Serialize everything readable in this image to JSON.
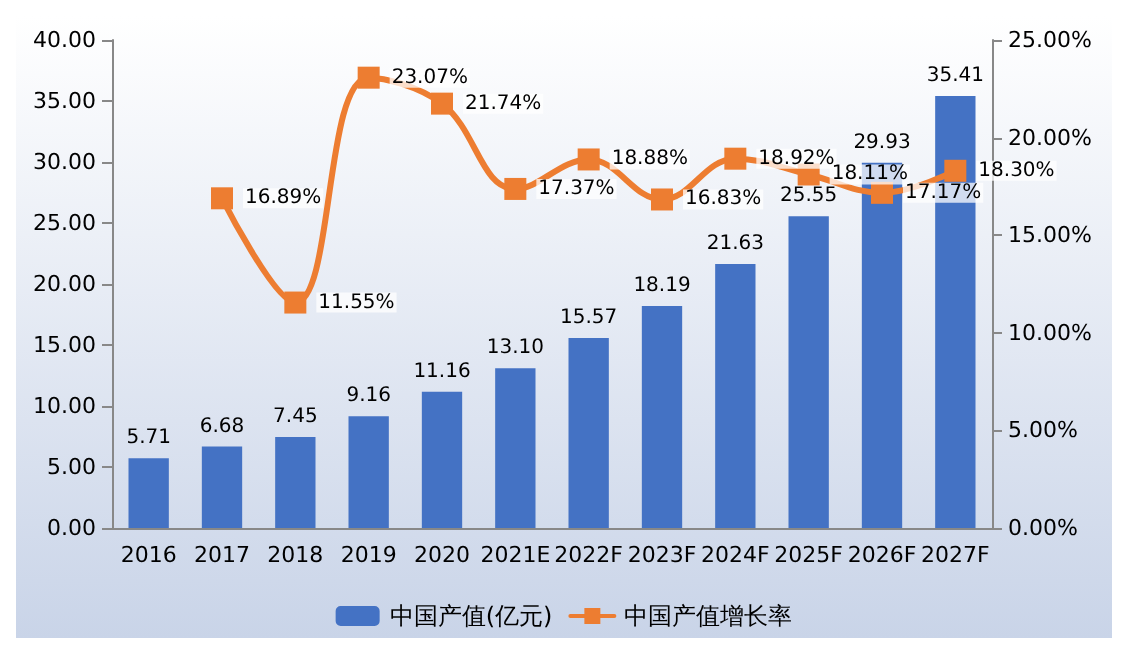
{
  "chart_data": {
    "type": "bar",
    "categories": [
      "2016",
      "2017",
      "2018",
      "2019",
      "2020",
      "2021E",
      "2022F",
      "2023F",
      "2024F",
      "2025F",
      "2026F",
      "2027F"
    ],
    "series": [
      {
        "name": "中国产值(亿元)",
        "color": "#4472c4",
        "values": [
          5.71,
          6.68,
          7.45,
          9.16,
          11.16,
          13.1,
          15.57,
          18.19,
          21.63,
          25.55,
          29.93,
          35.41
        ],
        "value_labels": [
          "5.71",
          "6.68",
          "7.45",
          "9.16",
          "11.16",
          "13.10",
          "15.57",
          "18.19",
          "21.63",
          "25.55",
          "29.93",
          "35.41"
        ]
      },
      {
        "name": "中国产值增长率",
        "type": "line",
        "axis": "y2",
        "color": "#ed7d31",
        "marker": "square",
        "line_style": "solid",
        "values": [
          null,
          16.89,
          11.55,
          23.07,
          21.74,
          17.37,
          18.88,
          16.83,
          18.92,
          18.11,
          17.17,
          18.3
        ],
        "value_labels": [
          null,
          "16.89%",
          "11.55%",
          "23.07%",
          "21.74%",
          "17.37%",
          "18.88%",
          "16.83%",
          "18.92%",
          "18.11%",
          "17.17%",
          "18.30%"
        ]
      }
    ],
    "ylim": [
      0,
      40
    ],
    "yticks": [
      {
        "value": 0,
        "label": "0.00"
      },
      {
        "value": 5,
        "label": "5.00"
      },
      {
        "value": 10,
        "label": "10.00"
      },
      {
        "value": 15,
        "label": "15.00"
      },
      {
        "value": 20,
        "label": "20.00"
      },
      {
        "value": 25,
        "label": "25.00"
      },
      {
        "value": 30,
        "label": "30.00"
      },
      {
        "value": 35,
        "label": "35.00"
      },
      {
        "value": 40,
        "label": "40.00"
      }
    ],
    "y2lim": [
      0,
      25
    ],
    "y2ticks": [
      {
        "value": 0,
        "label": "0.00%"
      },
      {
        "value": 5,
        "label": "5.00%"
      },
      {
        "value": 10,
        "label": "10.00%"
      },
      {
        "value": 15,
        "label": "15.00%"
      },
      {
        "value": 20,
        "label": "20.00%"
      },
      {
        "value": 25,
        "label": "25.00%"
      }
    ],
    "legend": "bottom"
  }
}
